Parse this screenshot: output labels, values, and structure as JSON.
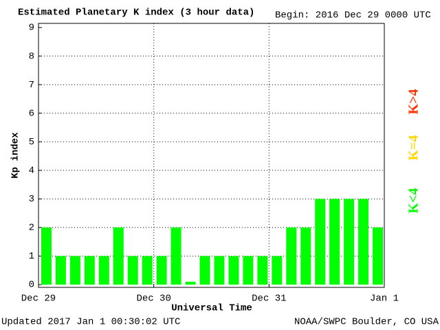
{
  "chart_data": {
    "type": "bar",
    "title": "Estimated Planetary K index (3 hour data)",
    "subtitle": "Begin:  2016 Dec 29 0000 UTC",
    "footer_left": "Updated 2017 Jan  1 00:30:02 UTC",
    "footer_right": "NOAA/SWPC Boulder, CO USA",
    "ylabel": "Kp index",
    "xlabel": "Universal Time",
    "x": [
      0,
      3,
      6,
      9,
      12,
      15,
      18,
      21,
      24,
      27,
      30,
      33,
      36,
      39,
      42,
      45,
      48,
      51,
      54,
      57,
      60,
      63,
      66,
      69
    ],
    "values": [
      2,
      1,
      1,
      1,
      1,
      2,
      1,
      1,
      1,
      2,
      0.1,
      1,
      1,
      1,
      1,
      1,
      1,
      2,
      2,
      3,
      3,
      3,
      3,
      2
    ],
    "color": "#00ff00",
    "xlim": [
      0,
      72
    ],
    "xticks": [
      {
        "value": 0,
        "label": "Dec 29"
      },
      {
        "value": 24,
        "label": "Dec 30"
      },
      {
        "value": 48,
        "label": "Dec 31"
      },
      {
        "value": 72,
        "label": "Jan 1"
      }
    ],
    "ylim": [
      0,
      9
    ],
    "yticks": [
      0,
      1,
      2,
      3,
      4,
      5,
      6,
      7,
      8,
      9
    ],
    "grid": true,
    "thresholds": [
      {
        "label": "K<4",
        "color": "#00ff00"
      },
      {
        "label": "K=4",
        "color": "#ffd700"
      },
      {
        "label": "K>4",
        "color": "#ff3300"
      }
    ]
  }
}
